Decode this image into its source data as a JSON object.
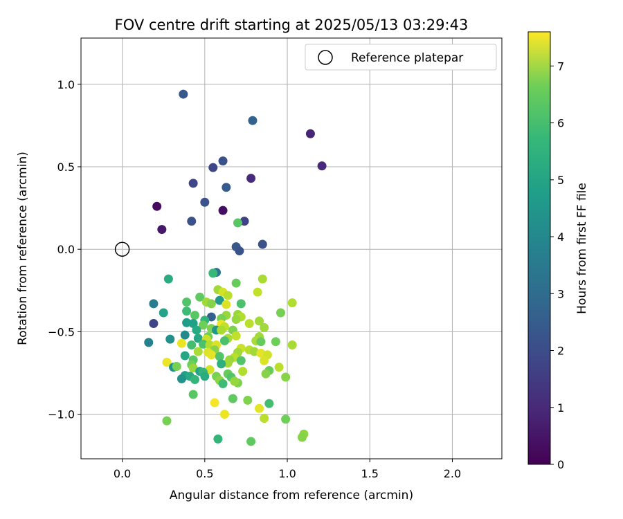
{
  "chart_data": {
    "type": "scatter",
    "title": "FOV centre drift starting at 2025/05/13 03:29:43",
    "xlabel": "Angular distance from reference (arcmin)",
    "ylabel": "Rotation from reference (arcmin)",
    "xlim": [
      -0.25,
      2.3
    ],
    "ylim": [
      -1.27,
      1.28
    ],
    "xticks": [
      0.0,
      0.5,
      1.0,
      1.5,
      2.0
    ],
    "xtick_labels": [
      "0.0",
      "0.5",
      "1.0",
      "1.5",
      "2.0"
    ],
    "yticks": [
      -1.0,
      -0.5,
      0.0,
      0.5,
      1.0
    ],
    "ytick_labels": [
      "−1.0",
      "−0.5",
      "0.0",
      "0.5",
      "1.0"
    ],
    "grid": true,
    "legend_position": "top-right",
    "legend_entries": [
      "Reference platepar"
    ],
    "reference_point": {
      "x": 0.0,
      "y": 0.0
    },
    "colormap": "viridis",
    "colorbar_label": "Hours from first FF file",
    "colorbar_range": [
      0,
      7.6
    ],
    "colorbar_ticks": [
      0,
      1,
      2,
      3,
      4,
      5,
      6,
      7
    ],
    "colorbar_tick_labels": [
      "0",
      "1",
      "2",
      "3",
      "4",
      "5",
      "6",
      "7"
    ],
    "points": [
      {
        "x": 0.37,
        "y": 0.94,
        "c": 2.1
      },
      {
        "x": 0.79,
        "y": 0.78,
        "c": 2.4
      },
      {
        "x": 1.14,
        "y": 0.7,
        "c": 0.8
      },
      {
        "x": 1.21,
        "y": 0.505,
        "c": 0.9
      },
      {
        "x": 0.61,
        "y": 0.535,
        "c": 1.9
      },
      {
        "x": 0.55,
        "y": 0.495,
        "c": 1.6
      },
      {
        "x": 0.78,
        "y": 0.43,
        "c": 0.9
      },
      {
        "x": 0.43,
        "y": 0.4,
        "c": 1.6
      },
      {
        "x": 0.63,
        "y": 0.375,
        "c": 2.2
      },
      {
        "x": 0.5,
        "y": 0.285,
        "c": 1.9
      },
      {
        "x": 0.21,
        "y": 0.26,
        "c": 0.2
      },
      {
        "x": 0.61,
        "y": 0.235,
        "c": 0.3
      },
      {
        "x": 0.42,
        "y": 0.17,
        "c": 1.9
      },
      {
        "x": 0.74,
        "y": 0.17,
        "c": 1.5
      },
      {
        "x": 0.7,
        "y": 0.16,
        "c": 5.6
      },
      {
        "x": 0.24,
        "y": 0.12,
        "c": 0.5
      },
      {
        "x": 0.69,
        "y": 0.015,
        "c": 2.1
      },
      {
        "x": 0.71,
        "y": -0.01,
        "c": 2.0
      },
      {
        "x": 0.85,
        "y": 0.03,
        "c": 1.9
      },
      {
        "x": 0.57,
        "y": -0.14,
        "c": 3.0
      },
      {
        "x": 0.55,
        "y": -0.145,
        "c": 5.1
      },
      {
        "x": 0.28,
        "y": -0.18,
        "c": 4.7
      },
      {
        "x": 0.85,
        "y": -0.18,
        "c": 6.6
      },
      {
        "x": 0.69,
        "y": -0.205,
        "c": 5.8
      },
      {
        "x": 0.58,
        "y": -0.245,
        "c": 6.5
      },
      {
        "x": 0.82,
        "y": -0.26,
        "c": 6.9
      },
      {
        "x": 0.61,
        "y": -0.26,
        "c": 7.1
      },
      {
        "x": 0.64,
        "y": -0.28,
        "c": 6.8
      },
      {
        "x": 0.47,
        "y": -0.29,
        "c": 5.7
      },
      {
        "x": 0.39,
        "y": -0.32,
        "c": 5.5
      },
      {
        "x": 0.51,
        "y": -0.32,
        "c": 6.5
      },
      {
        "x": 0.54,
        "y": -0.33,
        "c": 6.2
      },
      {
        "x": 0.59,
        "y": -0.31,
        "c": 4.1
      },
      {
        "x": 0.72,
        "y": -0.33,
        "c": 5.4
      },
      {
        "x": 1.03,
        "y": -0.325,
        "c": 6.7
      },
      {
        "x": 0.19,
        "y": -0.33,
        "c": 3.2
      },
      {
        "x": 0.63,
        "y": -0.335,
        "c": 7.2
      },
      {
        "x": 0.39,
        "y": -0.375,
        "c": 5.2
      },
      {
        "x": 0.25,
        "y": -0.385,
        "c": 4.4
      },
      {
        "x": 0.96,
        "y": -0.385,
        "c": 6.0
      },
      {
        "x": 0.63,
        "y": -0.4,
        "c": 6.4
      },
      {
        "x": 0.7,
        "y": -0.395,
        "c": 6.4
      },
      {
        "x": 0.44,
        "y": -0.4,
        "c": 5.6
      },
      {
        "x": 0.72,
        "y": -0.41,
        "c": 6.7
      },
      {
        "x": 0.54,
        "y": -0.41,
        "c": 2.3
      },
      {
        "x": 0.6,
        "y": -0.42,
        "c": 6.0
      },
      {
        "x": 0.69,
        "y": -0.425,
        "c": 6.4
      },
      {
        "x": 0.5,
        "y": -0.43,
        "c": 5.0
      },
      {
        "x": 0.19,
        "y": -0.45,
        "c": 1.6
      },
      {
        "x": 0.39,
        "y": -0.445,
        "c": 4.2
      },
      {
        "x": 0.43,
        "y": -0.45,
        "c": 4.3
      },
      {
        "x": 0.49,
        "y": -0.46,
        "c": 5.9
      },
      {
        "x": 0.6,
        "y": -0.455,
        "c": 7.4
      },
      {
        "x": 0.77,
        "y": -0.45,
        "c": 6.8
      },
      {
        "x": 0.83,
        "y": -0.435,
        "c": 6.5
      },
      {
        "x": 0.62,
        "y": -0.47,
        "c": 6.9
      },
      {
        "x": 0.86,
        "y": -0.475,
        "c": 6.5
      },
      {
        "x": 0.54,
        "y": -0.48,
        "c": 6.1
      },
      {
        "x": 0.57,
        "y": -0.49,
        "c": 4.0
      },
      {
        "x": 0.6,
        "y": -0.49,
        "c": 6.6
      },
      {
        "x": 0.45,
        "y": -0.49,
        "c": 4.6
      },
      {
        "x": 0.67,
        "y": -0.49,
        "c": 6.1
      },
      {
        "x": 0.69,
        "y": -0.525,
        "c": 6.9
      },
      {
        "x": 0.38,
        "y": -0.52,
        "c": 3.6
      },
      {
        "x": 0.52,
        "y": -0.53,
        "c": 5.9
      },
      {
        "x": 0.83,
        "y": -0.53,
        "c": 6.5
      },
      {
        "x": 0.46,
        "y": -0.54,
        "c": 4.5
      },
      {
        "x": 0.51,
        "y": -0.545,
        "c": 7.0
      },
      {
        "x": 0.64,
        "y": -0.54,
        "c": 6.6
      },
      {
        "x": 0.29,
        "y": -0.545,
        "c": 3.8
      },
      {
        "x": 0.36,
        "y": -0.57,
        "c": 7.4
      },
      {
        "x": 0.16,
        "y": -0.565,
        "c": 3.3
      },
      {
        "x": 0.62,
        "y": -0.555,
        "c": 5.4
      },
      {
        "x": 0.81,
        "y": -0.555,
        "c": 6.6
      },
      {
        "x": 0.84,
        "y": -0.56,
        "c": 5.8
      },
      {
        "x": 0.93,
        "y": -0.56,
        "c": 5.9
      },
      {
        "x": 1.03,
        "y": -0.58,
        "c": 6.6
      },
      {
        "x": 0.49,
        "y": -0.575,
        "c": 5.4
      },
      {
        "x": 0.53,
        "y": -0.58,
        "c": 6.7
      },
      {
        "x": 0.57,
        "y": -0.58,
        "c": 7.2
      },
      {
        "x": 0.42,
        "y": -0.58,
        "c": 5.3
      },
      {
        "x": 0.72,
        "y": -0.6,
        "c": 7.0
      },
      {
        "x": 0.56,
        "y": -0.61,
        "c": 6.2
      },
      {
        "x": 0.46,
        "y": -0.62,
        "c": 6.6
      },
      {
        "x": 0.52,
        "y": -0.625,
        "c": 7.2
      },
      {
        "x": 0.7,
        "y": -0.625,
        "c": 6.5
      },
      {
        "x": 0.77,
        "y": -0.61,
        "c": 6.8
      },
      {
        "x": 0.8,
        "y": -0.62,
        "c": 6.5
      },
      {
        "x": 0.84,
        "y": -0.63,
        "c": 7.3
      },
      {
        "x": 0.88,
        "y": -0.64,
        "c": 7.1
      },
      {
        "x": 0.54,
        "y": -0.64,
        "c": 7.3
      },
      {
        "x": 0.38,
        "y": -0.645,
        "c": 4.5
      },
      {
        "x": 0.59,
        "y": -0.65,
        "c": 5.5
      },
      {
        "x": 0.68,
        "y": -0.655,
        "c": 6.8
      },
      {
        "x": 0.65,
        "y": -0.67,
        "c": 6.4
      },
      {
        "x": 0.72,
        "y": -0.675,
        "c": 5.5
      },
      {
        "x": 0.43,
        "y": -0.67,
        "c": 5.6
      },
      {
        "x": 0.86,
        "y": -0.675,
        "c": 7.2
      },
      {
        "x": 0.27,
        "y": -0.685,
        "c": 7.4
      },
      {
        "x": 0.64,
        "y": -0.69,
        "c": 6.5
      },
      {
        "x": 0.6,
        "y": -0.695,
        "c": 4.8
      },
      {
        "x": 0.31,
        "y": -0.715,
        "c": 3.9
      },
      {
        "x": 0.33,
        "y": -0.71,
        "c": 6.0
      },
      {
        "x": 0.42,
        "y": -0.7,
        "c": 5.9
      },
      {
        "x": 0.43,
        "y": -0.72,
        "c": 6.4
      },
      {
        "x": 0.53,
        "y": -0.73,
        "c": 7.1
      },
      {
        "x": 0.95,
        "y": -0.715,
        "c": 6.8
      },
      {
        "x": 0.89,
        "y": -0.735,
        "c": 5.8
      },
      {
        "x": 0.47,
        "y": -0.74,
        "c": 4.4
      },
      {
        "x": 0.49,
        "y": -0.745,
        "c": 5.0
      },
      {
        "x": 0.73,
        "y": -0.74,
        "c": 6.7
      },
      {
        "x": 0.87,
        "y": -0.755,
        "c": 6.2
      },
      {
        "x": 0.64,
        "y": -0.755,
        "c": 5.8
      },
      {
        "x": 0.38,
        "y": -0.765,
        "c": 4.3
      },
      {
        "x": 0.41,
        "y": -0.77,
        "c": 4.6
      },
      {
        "x": 0.5,
        "y": -0.77,
        "c": 4.7
      },
      {
        "x": 0.57,
        "y": -0.77,
        "c": 6.0
      },
      {
        "x": 0.99,
        "y": -0.775,
        "c": 6.2
      },
      {
        "x": 0.66,
        "y": -0.775,
        "c": 5.5
      },
      {
        "x": 0.36,
        "y": -0.785,
        "c": 3.9
      },
      {
        "x": 0.44,
        "y": -0.79,
        "c": 5.0
      },
      {
        "x": 0.59,
        "y": -0.795,
        "c": 6.3
      },
      {
        "x": 0.7,
        "y": -0.81,
        "c": 6.1
      },
      {
        "x": 0.61,
        "y": -0.815,
        "c": 5.2
      },
      {
        "x": 0.68,
        "y": -0.8,
        "c": 6.4
      },
      {
        "x": 0.43,
        "y": -0.88,
        "c": 5.6
      },
      {
        "x": 0.67,
        "y": -0.905,
        "c": 5.7
      },
      {
        "x": 0.76,
        "y": -0.915,
        "c": 6.1
      },
      {
        "x": 0.56,
        "y": -0.93,
        "c": 7.5
      },
      {
        "x": 0.89,
        "y": -0.935,
        "c": 5.3
      },
      {
        "x": 0.83,
        "y": -0.965,
        "c": 7.3
      },
      {
        "x": 0.62,
        "y": -1.0,
        "c": 7.4
      },
      {
        "x": 0.86,
        "y": -1.025,
        "c": 6.8
      },
      {
        "x": 0.99,
        "y": -1.03,
        "c": 5.9
      },
      {
        "x": 0.27,
        "y": -1.04,
        "c": 6.0
      },
      {
        "x": 1.1,
        "y": -1.12,
        "c": 6.3
      },
      {
        "x": 1.09,
        "y": -1.14,
        "c": 6.2
      },
      {
        "x": 0.58,
        "y": -1.15,
        "c": 5.0
      },
      {
        "x": 0.78,
        "y": -1.165,
        "c": 5.7
      }
    ]
  }
}
